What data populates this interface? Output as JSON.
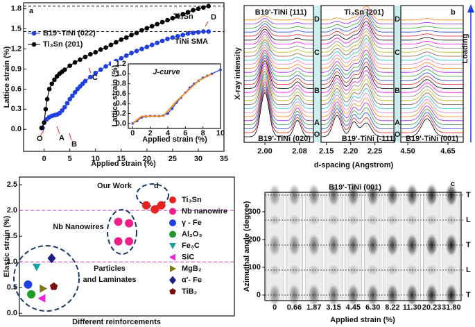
{
  "chart_data": [
    {
      "type": "line",
      "label": "a",
      "xlabel": "Applied strain (%)",
      "ylabel": "Lattice strain (%)",
      "xlim": [
        -4,
        35
      ],
      "xticks": [
        0,
        5,
        10,
        15,
        20,
        25,
        30,
        35
      ],
      "ylim": [
        -0.33,
        1.89
      ],
      "yticks": [
        {
          "value": 0,
          "label": "0.0"
        },
        0.3,
        0.6,
        0.9,
        1.2,
        1.5,
        1.8
      ],
      "hlines": [
        1.84,
        1.46
      ],
      "legend": "upper left",
      "series": [
        {
          "name": "B19'-TiNi (022)",
          "color": "#1f3fe0",
          "x": [
            -0.3,
            0,
            0.5,
            1,
            1.5,
            2,
            2.5,
            3,
            3.5,
            4,
            4.5,
            5,
            5.5,
            6,
            6.5,
            7,
            7.5,
            8,
            9,
            10,
            11,
            12,
            13,
            14,
            15,
            16,
            17,
            18,
            19,
            20,
            21,
            22,
            23,
            24,
            25,
            26,
            27,
            28,
            29,
            30,
            31,
            32
          ],
          "values": [
            0.02,
            0.1,
            0.15,
            0.18,
            0.2,
            0.21,
            0.22,
            0.24,
            0.28,
            0.33,
            0.39,
            0.45,
            0.5,
            0.55,
            0.6,
            0.64,
            0.68,
            0.72,
            0.78,
            0.84,
            0.89,
            0.94,
            0.98,
            1.02,
            1.06,
            1.1,
            1.14,
            1.17,
            1.2,
            1.23,
            1.26,
            1.29,
            1.32,
            1.35,
            1.37,
            1.39,
            1.41,
            1.43,
            1.44,
            1.45,
            1.46,
            1.46
          ]
        },
        {
          "name": "Ti₃Sn (201)",
          "color": "#000000",
          "x": [
            -0.5,
            0,
            0.3,
            0.6,
            1,
            1.5,
            2,
            2.5,
            3,
            3.5,
            4,
            5,
            6,
            7,
            8,
            9,
            10,
            11,
            12,
            13,
            14,
            15,
            16,
            17,
            18,
            19,
            20,
            21,
            22,
            23,
            24,
            25,
            26,
            27,
            28,
            29,
            30,
            31,
            32
          ],
          "values": [
            0.02,
            0.1,
            0.3,
            0.45,
            0.6,
            0.68,
            0.74,
            0.79,
            0.83,
            0.86,
            0.89,
            0.95,
            1.0,
            1.04,
            1.08,
            1.12,
            1.15,
            1.19,
            1.22,
            1.26,
            1.3,
            1.34,
            1.37,
            1.41,
            1.44,
            1.48,
            1.51,
            1.54,
            1.57,
            1.6,
            1.63,
            1.66,
            1.69,
            1.72,
            1.75,
            1.78,
            1.8,
            1.82,
            1.84
          ]
        }
      ],
      "annotations": [
        "Ti₃Sn",
        "TiNi SMA",
        "O",
        "A",
        "B",
        "C",
        "D"
      ]
    },
    {
      "type": "line",
      "title": "J-curve",
      "xlabel": "Applied strain (%)",
      "ylabel": "Lattice strain (%)",
      "xlim": [
        -0.5,
        10
      ],
      "xticks": [
        0,
        2,
        4,
        6,
        8,
        10
      ],
      "ylim": [
        -0.1,
        1.2
      ],
      "yticks": [
        {
          "value": 0,
          "label": "0.0"
        },
        0.2,
        0.4,
        0.6,
        0.8,
        {
          "value": 1,
          "label": "1.0"
        },
        1.2
      ],
      "series": [
        {
          "color": "#1f3fe0",
          "x": [
            0,
            0.5,
            1,
            1.5,
            2,
            2.5,
            3,
            3.5,
            4,
            4.5,
            5,
            5.5,
            6,
            6.5,
            7,
            7.5,
            8,
            8.5,
            9,
            10
          ],
          "values": [
            0,
            0.05,
            0.12,
            0.14,
            0.15,
            0.15,
            0.15,
            0.16,
            0.2,
            0.3,
            0.42,
            0.52,
            0.62,
            0.72,
            0.8,
            0.86,
            0.92,
            0.96,
            1.0,
            1.08
          ]
        },
        {
          "color": "#f08a24",
          "x": [
            0,
            1,
            3.5,
            5,
            7.5,
            9
          ],
          "values": [
            0,
            0.14,
            0.15,
            0.45,
            0.86,
            1.0
          ]
        }
      ]
    },
    {
      "type": "waterfall",
      "label": "b",
      "xlabel": "d-spacing (Angstrom)",
      "ylabel": "X-ray intensity",
      "arrow_label": "Loading",
      "segments": [
        {
          "xlim": [
            1.952,
            2.112
          ],
          "xticks": [
            {
              "value": 2,
              "label": "2.00"
            },
            2.08
          ]
        },
        {
          "xlim": [
            2.139,
            2.289
          ],
          "xticks": [
            2.15,
            {
              "value": 2.2,
              "label": "2.20"
            },
            2.25
          ]
        },
        {
          "xlim": [
            4.474,
            4.707
          ],
          "xticks": [
            {
              "value": 4.5,
              "label": "4.50"
            },
            4.65
          ]
        }
      ],
      "annotations": [
        "B19'-TiNi (111)",
        "Ti₃Sn (201)",
        "B19'-TiNi (020)",
        "B19'-TiNi (-111)",
        "B19'-TiNi (001)"
      ],
      "stages": [
        "O",
        "A",
        "B",
        "C",
        "D"
      ]
    },
    {
      "type": "scatter",
      "label": "d",
      "xlabel": "Different reinforcements",
      "ylabel": "Elastic strain (%)",
      "xlim": [
        0,
        10
      ],
      "ylim": [
        -0.05,
        2.65
      ],
      "yticks": [
        {
          "value": 0,
          "label": "0.0"
        },
        0.5,
        {
          "value": 1,
          "label": "1.0"
        },
        1.5,
        {
          "value": 2,
          "label": "2.0"
        },
        2.5
      ],
      "hlines": [
        2.0,
        1.0
      ],
      "series": [
        {
          "name": "Ti₃Sn",
          "color": "#e8231f",
          "marker": "circle",
          "x": [
            5.9,
            6.3,
            6.6
          ],
          "values": [
            2.1,
            2.02,
            2.1
          ]
        },
        {
          "name": "Nb nanowire",
          "color": "#f0208a",
          "marker": "circle",
          "x": [
            4.6,
            5.1,
            4.6,
            5.1
          ],
          "values": [
            1.78,
            1.75,
            1.4,
            1.4
          ]
        },
        {
          "name": "γ - Fe",
          "color": "#1f3fe0",
          "marker": "circle",
          "x": [
            0.4
          ],
          "values": [
            0.56
          ]
        },
        {
          "name": "Al₂O₃",
          "color": "#1e9a2a",
          "marker": "circle",
          "x": [
            0.55
          ],
          "values": [
            0.37
          ]
        },
        {
          "name": "Fe₃C",
          "color": "#1aa0a0",
          "marker": "triangle-down",
          "x": [
            0.8
          ],
          "values": [
            0.9
          ]
        },
        {
          "name": "SiC",
          "color": "#f020e0",
          "marker": "triangle-left",
          "x": [
            1.05
          ],
          "values": [
            0.29
          ]
        },
        {
          "name": "MgB₂",
          "color": "#7a7a10",
          "marker": "triangle-right",
          "x": [
            1.1
          ],
          "values": [
            0.48
          ]
        },
        {
          "name": "α'- Fe",
          "color": "#1a1f80",
          "marker": "diamond",
          "x": [
            1.5
          ],
          "values": [
            1.07
          ]
        },
        {
          "name": "TiB₂",
          "color": "#7a1010",
          "marker": "pentagon",
          "x": [
            1.6
          ],
          "values": [
            0.52
          ]
        }
      ],
      "annotations": [
        "Our Work",
        "Nb Nanowires",
        "Particles",
        "and Laminates"
      ]
    },
    {
      "type": "image-strips",
      "label": "c",
      "title": "B19'-TiNi (001)",
      "xlabel": "Applied strain (%)",
      "ylabel": "Azimuthal angle (degree)",
      "categories": [
        "0",
        "0.66",
        "1.87",
        "3.15",
        "4.45",
        "6.30",
        "8.22",
        "11.30",
        "20.23",
        "31.80"
      ],
      "ylim": [
        -20,
        370
      ],
      "yticks": [
        0,
        100,
        200,
        300
      ],
      "reference_lines": [
        {
          "value": 0,
          "label": "T"
        },
        {
          "value": 90,
          "label": "L"
        },
        {
          "value": 180,
          "label": "T"
        },
        {
          "value": 270,
          "label": "L"
        },
        {
          "value": 360,
          "label": "T"
        }
      ]
    }
  ]
}
